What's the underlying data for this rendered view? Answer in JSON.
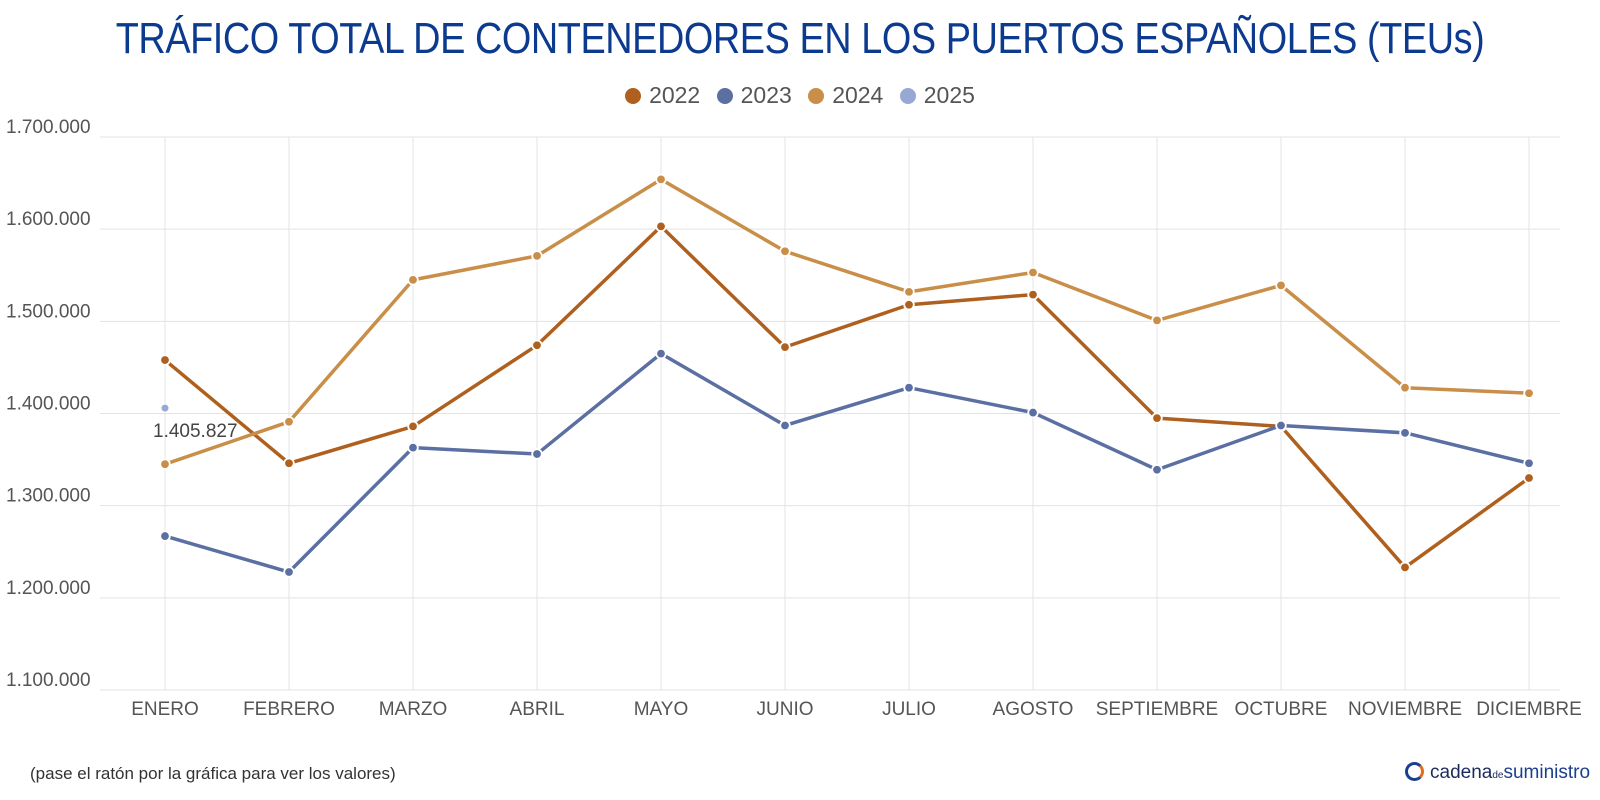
{
  "chart_data": {
    "type": "line",
    "title": "TRÁFICO TOTAL DE CONTENEDORES EN LOS PUERTOS ESPAÑOLES (TEUs)",
    "categories": [
      "ENERO",
      "FEBRERO",
      "MARZO",
      "ABRIL",
      "MAYO",
      "JUNIO",
      "JULIO",
      "AGOSTO",
      "SEPTIEMBRE",
      "OCTUBRE",
      "NOVIEMBRE",
      "DICIEMBRE"
    ],
    "series": [
      {
        "name": "2022",
        "color": "#b0601e",
        "values": [
          1458000,
          1346000,
          1386000,
          1474000,
          1603000,
          1472000,
          1518000,
          1529000,
          1395000,
          1386000,
          1233000,
          1330000
        ]
      },
      {
        "name": "2023",
        "color": "#5b6fa3",
        "values": [
          1267000,
          1228000,
          1363000,
          1356000,
          1465000,
          1387000,
          1428000,
          1401000,
          1339000,
          1387000,
          1379000,
          1346000
        ]
      },
      {
        "name": "2024",
        "color": "#c98e47",
        "values": [
          1345000,
          1391000,
          1545000,
          1571000,
          1654000,
          1576000,
          1532000,
          1553000,
          1501000,
          1539000,
          1428000,
          1422000
        ]
      },
      {
        "name": "2025",
        "color": "#96a8d3",
        "values": [
          1405827,
          null,
          null,
          null,
          null,
          null,
          null,
          null,
          null,
          null,
          null,
          null
        ]
      }
    ],
    "data_labels": [
      {
        "series": "2025",
        "category": "ENERO",
        "text": "1.405.827"
      }
    ],
    "ylim": [
      1100000,
      1700000
    ],
    "yticks": [
      1100000,
      1200000,
      1300000,
      1400000,
      1500000,
      1600000,
      1700000
    ],
    "ytick_labels": [
      "1.100.000",
      "1.200.000",
      "1.300.000",
      "1.400.000",
      "1.500.000",
      "1.600.000",
      "1.700.000"
    ],
    "grid": true,
    "legend_position": "top-center"
  },
  "footnote": "(pase el ratón por la gráfica para ver los valores)",
  "logo": {
    "part1": "cadena",
    "part2": "de",
    "part3": "suministro"
  }
}
